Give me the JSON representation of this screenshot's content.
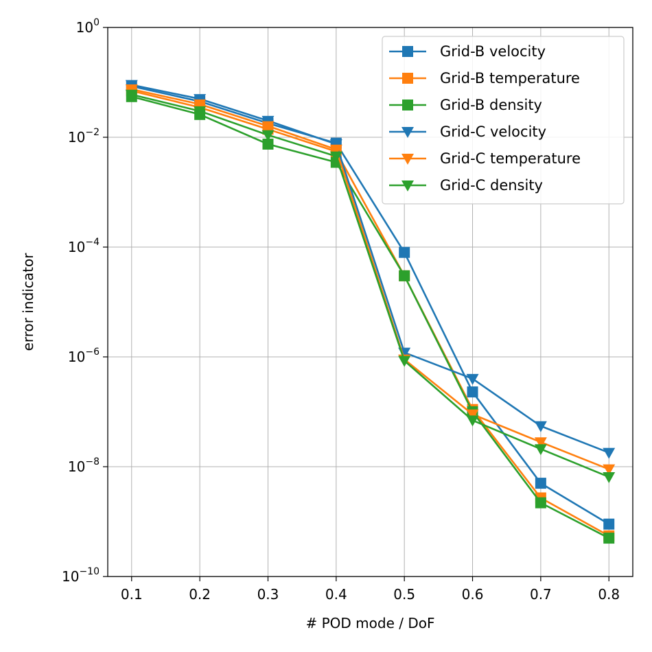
{
  "chart_data": {
    "type": "line",
    "title": "",
    "xlabel": "# POD mode / DoF",
    "ylabel": "error indicator",
    "yscale": "log",
    "xlim": [
      0.065,
      0.835
    ],
    "ylim": [
      1e-10,
      1
    ],
    "grid": true,
    "legend_position": "upper right",
    "x": [
      0.1,
      0.2,
      0.3,
      0.4,
      0.5,
      0.6,
      0.7,
      0.8
    ],
    "x_tick_labels": [
      "0.1",
      "0.2",
      "0.3",
      "0.4",
      "0.5",
      "0.6",
      "0.7",
      "0.8"
    ],
    "y_ticks": [
      {
        "base": "10",
        "exp": "0",
        "value": 1
      },
      {
        "base": "10",
        "exp": "−2",
        "value": 0.01
      },
      {
        "base": "10",
        "exp": "−4",
        "value": 0.0001
      },
      {
        "base": "10",
        "exp": "−6",
        "value": 1e-06
      },
      {
        "base": "10",
        "exp": "−8",
        "value": 1e-08
      },
      {
        "base": "10",
        "exp": "−10",
        "value": 1e-10
      }
    ],
    "series": [
      {
        "name": "Grid-B velocity",
        "color": "#1f77b4",
        "marker": "square",
        "values": [
          0.085,
          0.045,
          0.018,
          0.0078,
          8e-05,
          2.3e-07,
          5e-09,
          9e-10
        ]
      },
      {
        "name": "Grid-B temperature",
        "color": "#ff7f0e",
        "marker": "square",
        "values": [
          0.07,
          0.035,
          0.014,
          0.0055,
          3e-05,
          1.1e-07,
          2.7e-09,
          5.5e-10
        ]
      },
      {
        "name": "Grid-B density",
        "color": "#2ca02c",
        "marker": "square",
        "values": [
          0.055,
          0.026,
          0.0075,
          0.0035,
          3e-05,
          1e-07,
          2.2e-09,
          5e-10
        ]
      },
      {
        "name": "Grid-C velocity",
        "color": "#1f77b4",
        "marker": "triangle-down",
        "values": [
          0.09,
          0.05,
          0.02,
          0.0075,
          1.2e-06,
          4e-07,
          5.5e-08,
          1.8e-08
        ]
      },
      {
        "name": "Grid-C temperature",
        "color": "#ff7f0e",
        "marker": "triangle-down",
        "values": [
          0.075,
          0.04,
          0.016,
          0.006,
          9e-07,
          9e-08,
          2.8e-08,
          9e-09
        ]
      },
      {
        "name": "Grid-C density",
        "color": "#2ca02c",
        "marker": "triangle-down",
        "values": [
          0.06,
          0.03,
          0.011,
          0.0045,
          8.5e-07,
          7e-08,
          2.1e-08,
          6.5e-09
        ]
      }
    ]
  }
}
